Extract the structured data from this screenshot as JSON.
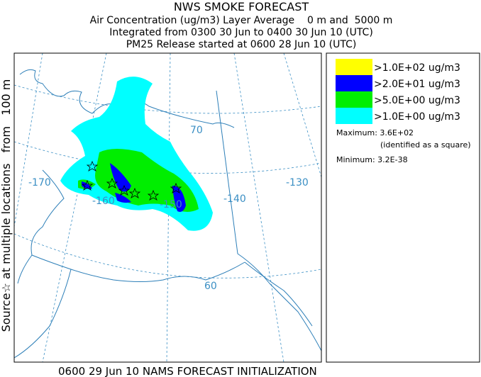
{
  "header": {
    "title": "NWS SMOKE FORECAST",
    "lines": [
      "Air Concentration (ug/m3) Layer Average    0 m and  5000 m",
      "Integrated from 0300 30 Jun to 0400 30 Jun 10 (UTC)",
      "PM25 Release started at 0600 28 Jun 10 (UTC)"
    ]
  },
  "side_label": "Source☆ at multiple locations   from   100 m",
  "map": {
    "labels": [
      "-170",
      "-160",
      "-150",
      "-140",
      "-130",
      "70",
      "60"
    ]
  },
  "legend": {
    "entries": [
      {
        "label": ">1.0E+02 ug/m3",
        "color": "#ffff00"
      },
      {
        "label": ">2.0E+01 ug/m3",
        "color": "#0000ff"
      },
      {
        "label": ">5.0E+00 ug/m3",
        "color": "#00ee00"
      },
      {
        "label": ">1.0E+00 ug/m3",
        "color": "#00ffff"
      }
    ],
    "maximum": "Maximum: 3.6E+02",
    "maximum_note": "(identified as a square)",
    "minimum": "Minimum: 3.2E-38"
  },
  "footer": "0600 29 Jun 10 NAMS FORECAST INITIALIZATION"
}
